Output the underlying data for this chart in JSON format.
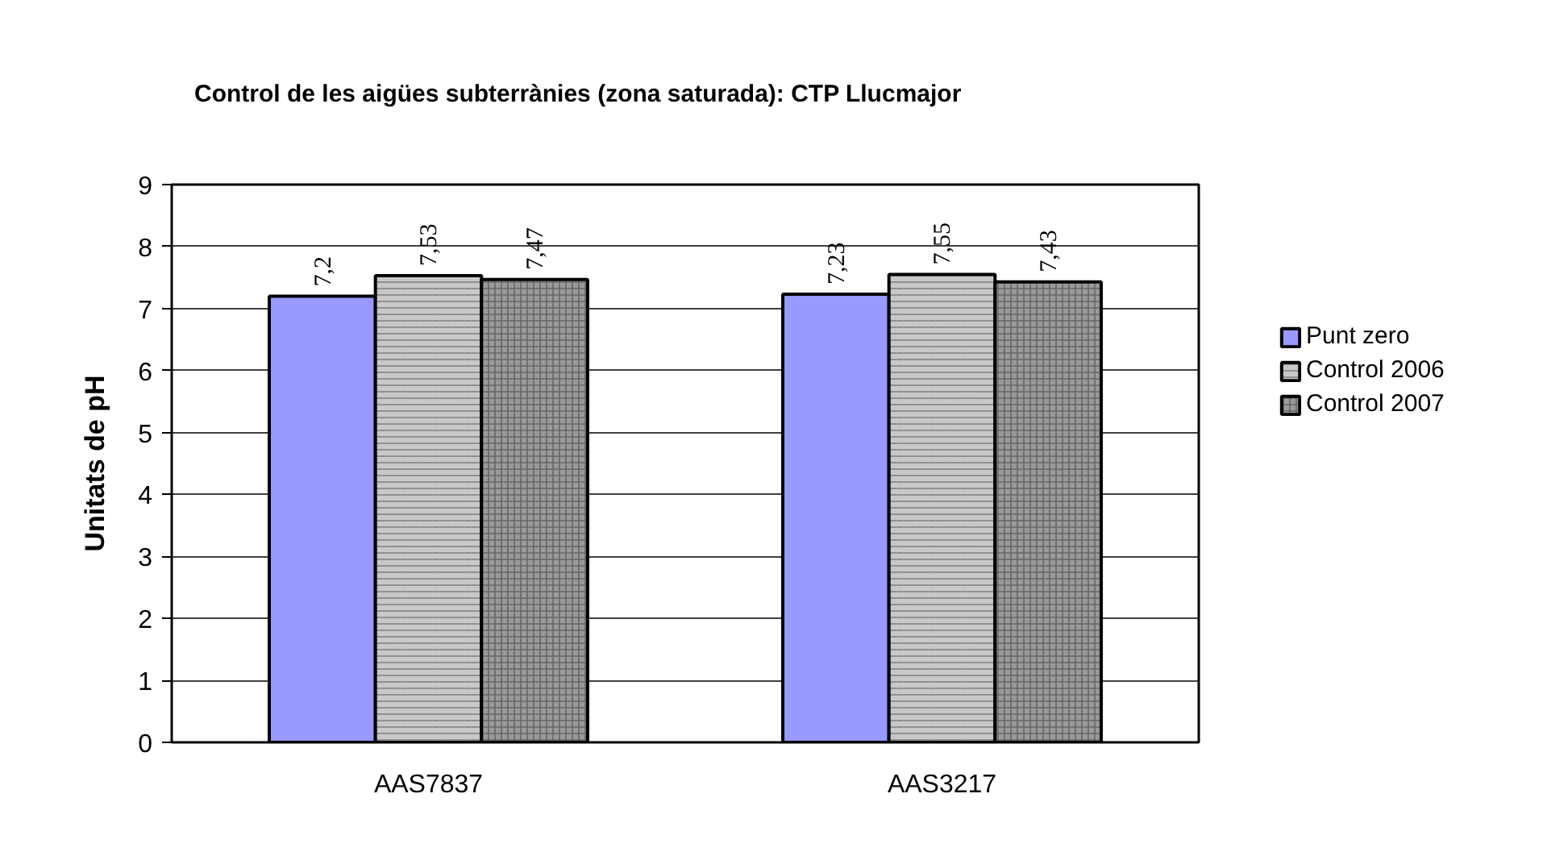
{
  "chart_data": {
    "type": "bar",
    "title": "Control de les aigües subterrànies (zona saturada): CTP Llucmajor",
    "ylabel": "Unitats de pH",
    "categories": [
      "AAS7837",
      "AAS3217"
    ],
    "series": [
      {
        "name": "Punt zero",
        "color": "#9999ff",
        "values": [
          7.2,
          7.23
        ],
        "value_labels": [
          "7,2",
          "7,23"
        ]
      },
      {
        "name": "Control 2006",
        "color": "#c8c8c8",
        "values": [
          7.53,
          7.55
        ],
        "value_labels": [
          "7,53",
          "7,55"
        ]
      },
      {
        "name": "Control 2007",
        "color": "#9a9a9a",
        "values": [
          7.47,
          7.43
        ],
        "value_labels": [
          "7,47",
          "7,43"
        ]
      }
    ],
    "ylim": [
      0,
      9
    ],
    "yticks": [
      0,
      1,
      2,
      3,
      4,
      5,
      6,
      7,
      8,
      9
    ],
    "grid": "y",
    "legend": "right"
  }
}
